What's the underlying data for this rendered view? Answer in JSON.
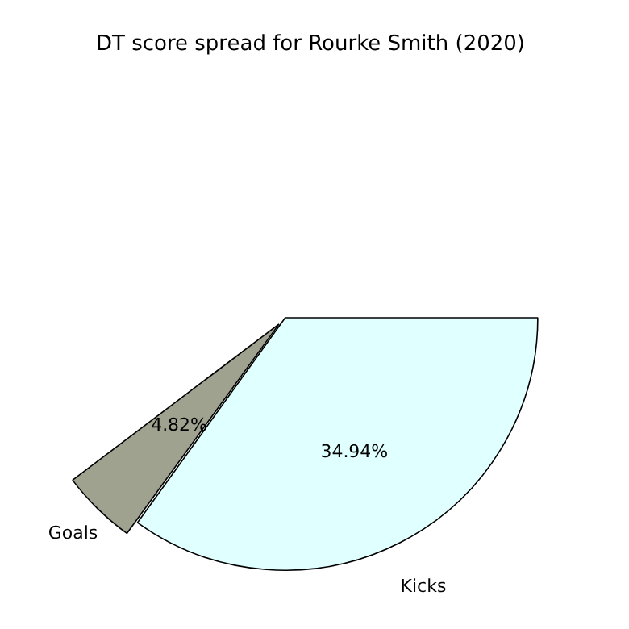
{
  "chart_data": {
    "type": "pie",
    "title": "DT score spread for Rourke Smith (2020)",
    "categories": [
      "Kicks",
      "Goals"
    ],
    "values": [
      34.94,
      4.82
    ],
    "colors": [
      "#e0ffff",
      "#9fa28f"
    ],
    "value_labels": [
      "34.94%",
      "4.82%"
    ],
    "legend": false
  }
}
